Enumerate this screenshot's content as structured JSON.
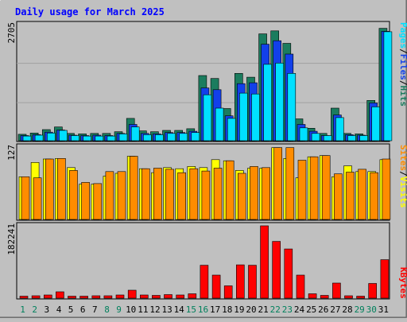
{
  "chart_data": [
    {
      "type": "bar",
      "title": "Daily usage for March 2025",
      "ymax_label": "2705",
      "ylim": [
        0,
        2705
      ],
      "series": [
        {
          "name": "Hits",
          "color": "#1b7c5e",
          "values": [
            150,
            180,
            260,
            320,
            170,
            160,
            170,
            170,
            210,
            520,
            230,
            210,
            240,
            240,
            280,
            1520,
            1450,
            750,
            1570,
            1480,
            2490,
            2560,
            2270,
            510,
            290,
            170,
            760,
            170,
            160,
            940,
            2620
          ]
        },
        {
          "name": "Files",
          "color": "#1240ea",
          "values": [
            120,
            140,
            200,
            250,
            130,
            120,
            130,
            120,
            170,
            380,
            170,
            160,
            190,
            190,
            220,
            1230,
            1190,
            580,
            1330,
            1350,
            2250,
            2330,
            2020,
            380,
            220,
            120,
            600,
            140,
            130,
            880,
            2550
          ]
        },
        {
          "name": "Pages",
          "color": "#00e0ff",
          "values": [
            110,
            130,
            180,
            240,
            120,
            110,
            110,
            110,
            160,
            320,
            140,
            140,
            170,
            170,
            190,
            1070,
            760,
            520,
            1110,
            1090,
            1780,
            1810,
            1570,
            300,
            170,
            120,
            540,
            120,
            120,
            790,
            2540
          ]
        }
      ]
    },
    {
      "type": "bar",
      "ymax_label": "127",
      "ylim": [
        0,
        127
      ],
      "series": [
        {
          "name": "Visits",
          "color": "#ffff00",
          "values": [
            75,
            100,
            106,
            107,
            91,
            62,
            62,
            76,
            81,
            111,
            89,
            82,
            91,
            89,
            93,
            91,
            105,
            103,
            86,
            90,
            90,
            126,
            107,
            73,
            110,
            112,
            75,
            94,
            84,
            84,
            105
          ]
        },
        {
          "name": "Sites",
          "color": "#ff8c00",
          "values": [
            75,
            73,
            106,
            107,
            86,
            65,
            63,
            84,
            84,
            111,
            89,
            90,
            88,
            82,
            89,
            85,
            90,
            103,
            81,
            93,
            91,
            126,
            126,
            104,
            110,
            112,
            80,
            83,
            88,
            82,
            106
          ]
        }
      ]
    },
    {
      "type": "bar",
      "ymax_label": "182241",
      "ylim": [
        0,
        182241
      ],
      "series": [
        {
          "name": "KBytes",
          "color": "#ff0000",
          "values": [
            5000,
            6000,
            8000,
            16000,
            5000,
            5000,
            6000,
            6000,
            8000,
            20000,
            8000,
            7000,
            9000,
            8000,
            11000,
            83000,
            58000,
            31000,
            84000,
            83000,
            182241,
            143000,
            124000,
            58000,
            11000,
            7000,
            38000,
            6000,
            5000,
            37000,
            97000
          ]
        }
      ]
    }
  ],
  "x_labels": [
    "1",
    "2",
    "3",
    "4",
    "5",
    "6",
    "7",
    "8",
    "9",
    "10",
    "11",
    "12",
    "13",
    "14",
    "15",
    "16",
    "17",
    "18",
    "19",
    "20",
    "21",
    "22",
    "23",
    "24",
    "25",
    "26",
    "27",
    "28",
    "29",
    "30",
    "31"
  ],
  "weekend_days": [
    "1",
    "2",
    "8",
    "9",
    "15",
    "16",
    "22",
    "23",
    "29",
    "30"
  ],
  "colors": {
    "background": "#c0c0c0",
    "weekday_label": "#000000",
    "weekend_label": "#00805c",
    "title": "#0000ff",
    "separator": "#000000"
  }
}
